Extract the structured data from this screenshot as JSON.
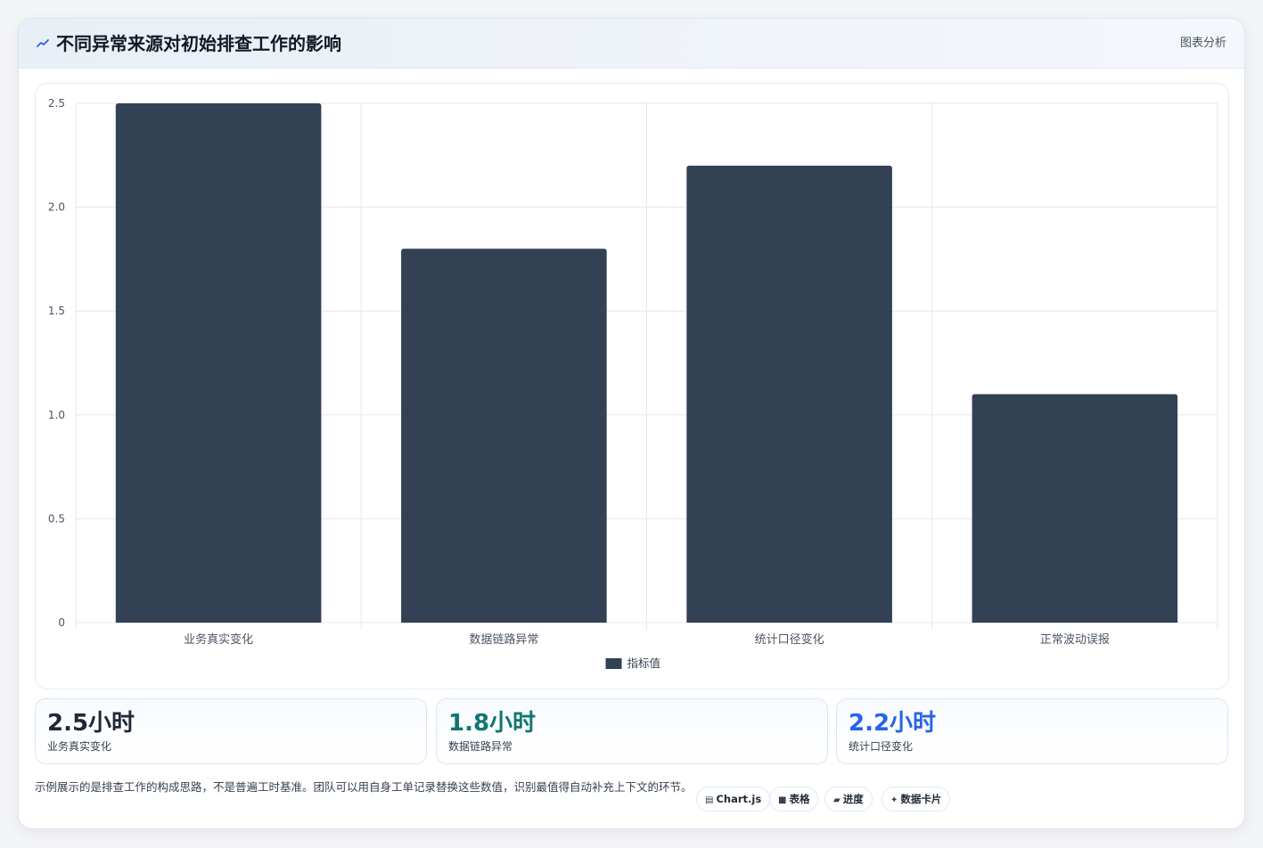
{
  "header": {
    "title": "不同异常来源对初始排查工作的影响",
    "tag": "图表分析",
    "accent": "#2563eb"
  },
  "chart_data": {
    "type": "bar",
    "categories": [
      "业务真实变化",
      "数据链路异常",
      "统计口径变化",
      "正常波动误报"
    ],
    "series": [
      {
        "name": "指标值",
        "values": [
          2.5,
          1.8,
          2.2,
          1.1
        ],
        "color": "#334155"
      }
    ],
    "ylim": [
      0,
      2.5
    ],
    "yticks": [
      "0",
      "0.5",
      "1.0",
      "1.5",
      "2.0",
      "2.5"
    ],
    "grid": true,
    "legend": "bottom"
  },
  "stats": [
    {
      "value": "2.5小时",
      "label": "业务真实变化",
      "color": "#1f2937"
    },
    {
      "value": "1.8小时",
      "label": "数据链路异常",
      "color": "#0f766e"
    },
    {
      "value": "2.2小时",
      "label": "统计口径变化",
      "color": "#2563eb"
    }
  ],
  "footer": {
    "note": "示例展示的是排查工作的构成思路，不是普遍工时基准。团队可以用自身工单记录替换这些数值，识别最值得自动补充上下文的环节。",
    "pills": [
      {
        "icon": "chart-icon",
        "label": "Chart.js"
      },
      {
        "icon": "table-icon",
        "label": "表格"
      },
      {
        "icon": "progress-icon",
        "label": "进度"
      },
      {
        "icon": "sparkle-icon",
        "label": "数据卡片"
      }
    ]
  }
}
